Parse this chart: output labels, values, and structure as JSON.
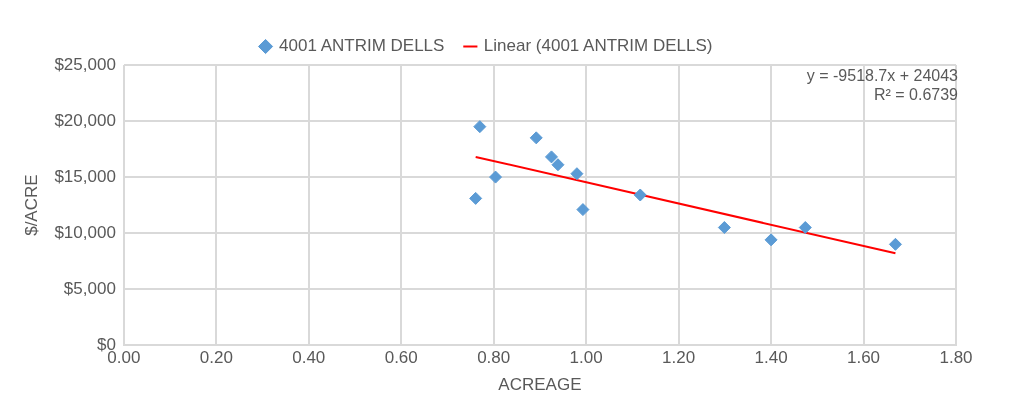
{
  "chart_data": {
    "type": "scatter",
    "xlabel": "ACREAGE",
    "ylabel": "$/ACRE",
    "xlim": [
      0,
      1.8
    ],
    "xticks": [
      {
        "value": 0,
        "label": "0.00"
      },
      {
        "value": 0.2,
        "label": "0.20"
      },
      {
        "value": 0.4,
        "label": "0.40"
      },
      {
        "value": 0.6,
        "label": "0.60"
      },
      {
        "value": 0.8,
        "label": "0.80"
      },
      {
        "value": 1,
        "label": "1.00"
      },
      {
        "value": 1.2,
        "label": "1.20"
      },
      {
        "value": 1.4,
        "label": "1.40"
      },
      {
        "value": 1.6,
        "label": "1.60"
      },
      {
        "value": 1.8,
        "label": "1.80"
      }
    ],
    "ylim": [
      0,
      25000
    ],
    "yticks": [
      {
        "value": 0,
        "label": "$0"
      },
      {
        "value": 5000,
        "label": "$5,000"
      },
      {
        "value": 10000,
        "label": "$10,000"
      },
      {
        "value": 15000,
        "label": "$15,000"
      },
      {
        "value": 20000,
        "label": "$20,000"
      },
      {
        "value": 25000,
        "label": "$25,000"
      }
    ],
    "grid": true,
    "legend": "top",
    "marker": "diamond",
    "annotations": [
      "y = -9518.7x + 24043",
      "R² = 0.6739"
    ],
    "series": [
      {
        "name": "4001 ANTRIM DELLS",
        "type": "scatter",
        "color": "#5b9bd5",
        "x": [
          0.77,
          0.761,
          0.804,
          0.892,
          0.925,
          0.939,
          0.98,
          0.993,
          1.117,
          1.299,
          1.4,
          1.474,
          1.669
        ],
        "values": [
          19500,
          13100,
          15000,
          18500,
          16800,
          16100,
          15300,
          12100,
          13400,
          10500,
          9400,
          10500,
          9000
        ]
      },
      {
        "name": "Linear (4001 ANTRIM DELLS)",
        "type": "line",
        "color": "#ff0000",
        "marker": "none",
        "line_style": "solid",
        "x": [
          0.761,
          1.669
        ],
        "values": [
          16800,
          8200
        ]
      }
    ]
  }
}
